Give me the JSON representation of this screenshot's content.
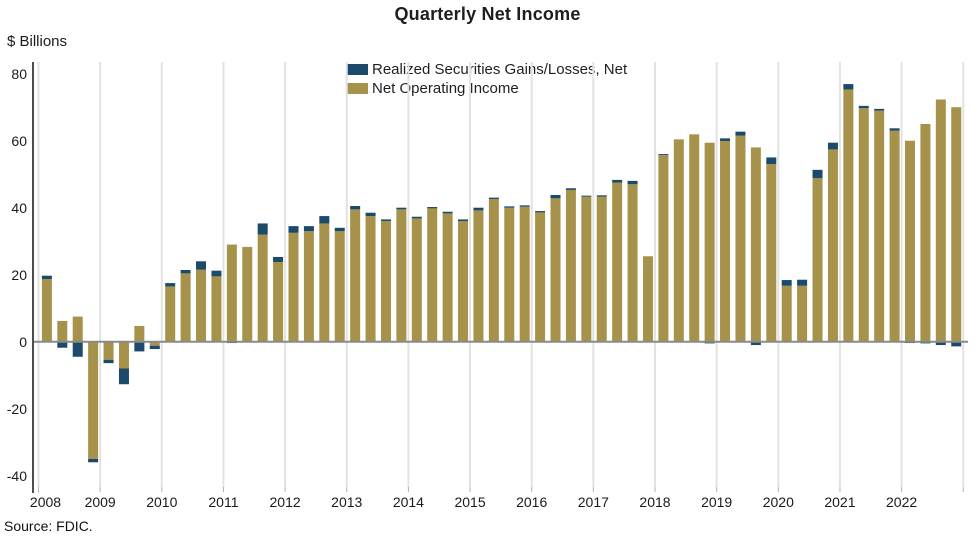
{
  "source": {
    "text": "Source: FDIC."
  },
  "colors": {
    "navy": "#1b4a6b",
    "gold": "#a6924a",
    "zero_line": "#8a8a8a",
    "axis_line": "#4d4d4d",
    "gridline": "#e2e2e2",
    "tick": "#b0b0b0"
  },
  "chart_data": {
    "type": "bar",
    "stacked": true,
    "title": "Quarterly Net Income",
    "ylabel": "$ Billions",
    "xlabel": "",
    "legend_position": "top-center",
    "grid": "vertical-yearly",
    "ylim": [
      -43,
      84
    ],
    "yticks": [
      80,
      60,
      40,
      20,
      0,
      -20,
      -40
    ],
    "year_labels": [
      "2008",
      "2009",
      "2010",
      "2011",
      "2012",
      "2013",
      "2014",
      "2015",
      "2016",
      "2017",
      "2018",
      "2019",
      "2020",
      "2021",
      "2022"
    ],
    "values_order": "quarterly, 2008Q1 through 2022Q4",
    "legend": [
      "Realized Securities Gains/Losses, Net",
      "Net Operating Income"
    ],
    "series": [
      {
        "name": "Net Operating Income",
        "color_key": "gold",
        "values": [
          18.7,
          6.2,
          7.5,
          -35.0,
          -5.4,
          -8.0,
          4.7,
          -1.2,
          16.5,
          20.4,
          21.5,
          19.5,
          29.0,
          28.3,
          32.0,
          23.8,
          32.5,
          33.0,
          35.3,
          33.0,
          39.5,
          37.5,
          36.0,
          39.5,
          36.8,
          39.8,
          38.3,
          36.0,
          39.2,
          42.6,
          40.0,
          40.3,
          38.6,
          42.8,
          45.3,
          43.3,
          43.3,
          47.5,
          47.0,
          25.5,
          55.7,
          60.4,
          61.9,
          59.4,
          59.9,
          61.5,
          58.0,
          53.0,
          16.7,
          16.7,
          48.8,
          57.4,
          75.3,
          69.7,
          69.0,
          63.0,
          60.0,
          65.0,
          72.3,
          70.0
        ]
      },
      {
        "name": "Realized Securities Gains/Losses, Net",
        "color_key": "navy",
        "values": [
          1.0,
          -1.8,
          -4.5,
          -1.0,
          -1.0,
          -4.7,
          -2.9,
          -1.0,
          1.0,
          1.0,
          2.5,
          1.7,
          -0.4,
          0,
          3.3,
          1.5,
          2.0,
          1.5,
          2.2,
          1.0,
          1.0,
          1.0,
          0.5,
          0.5,
          0.5,
          0.4,
          0.5,
          0.5,
          0.8,
          0.4,
          0.4,
          0.4,
          0.4,
          1.0,
          0.5,
          0.3,
          0.4,
          0.8,
          1.0,
          0,
          0.3,
          0,
          0,
          -0.5,
          0.8,
          1.2,
          -1.0,
          2.0,
          1.7,
          1.8,
          2.5,
          2.0,
          1.6,
          0.7,
          0.5,
          0.7,
          -0.4,
          -0.5,
          -1.0,
          -1.4
        ]
      }
    ]
  }
}
